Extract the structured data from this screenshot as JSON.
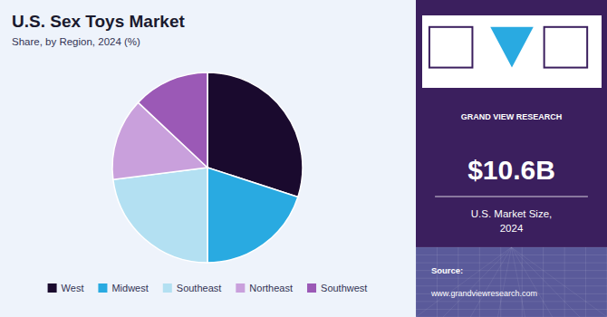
{
  "chart_data": {
    "type": "pie",
    "title": "U.S. Sex Toys Market",
    "subtitle": "Share, by Region, 2024 (%)",
    "categories": [
      "West",
      "Midwest",
      "Southeast",
      "Northeast",
      "Southwest"
    ],
    "values": [
      30,
      20,
      23,
      14,
      13
    ],
    "colors": [
      "#1a0a2e",
      "#29aae1",
      "#b3e0f2",
      "#c9a0dc",
      "#9b59b6"
    ],
    "legend": "bottom",
    "annotations": [
      "GRAND VIEW RESEARCH",
      "$10.6B",
      "U.S. Market Size,\n2024",
      "Source:",
      "www.grandviewresearch.com"
    ]
  }
}
